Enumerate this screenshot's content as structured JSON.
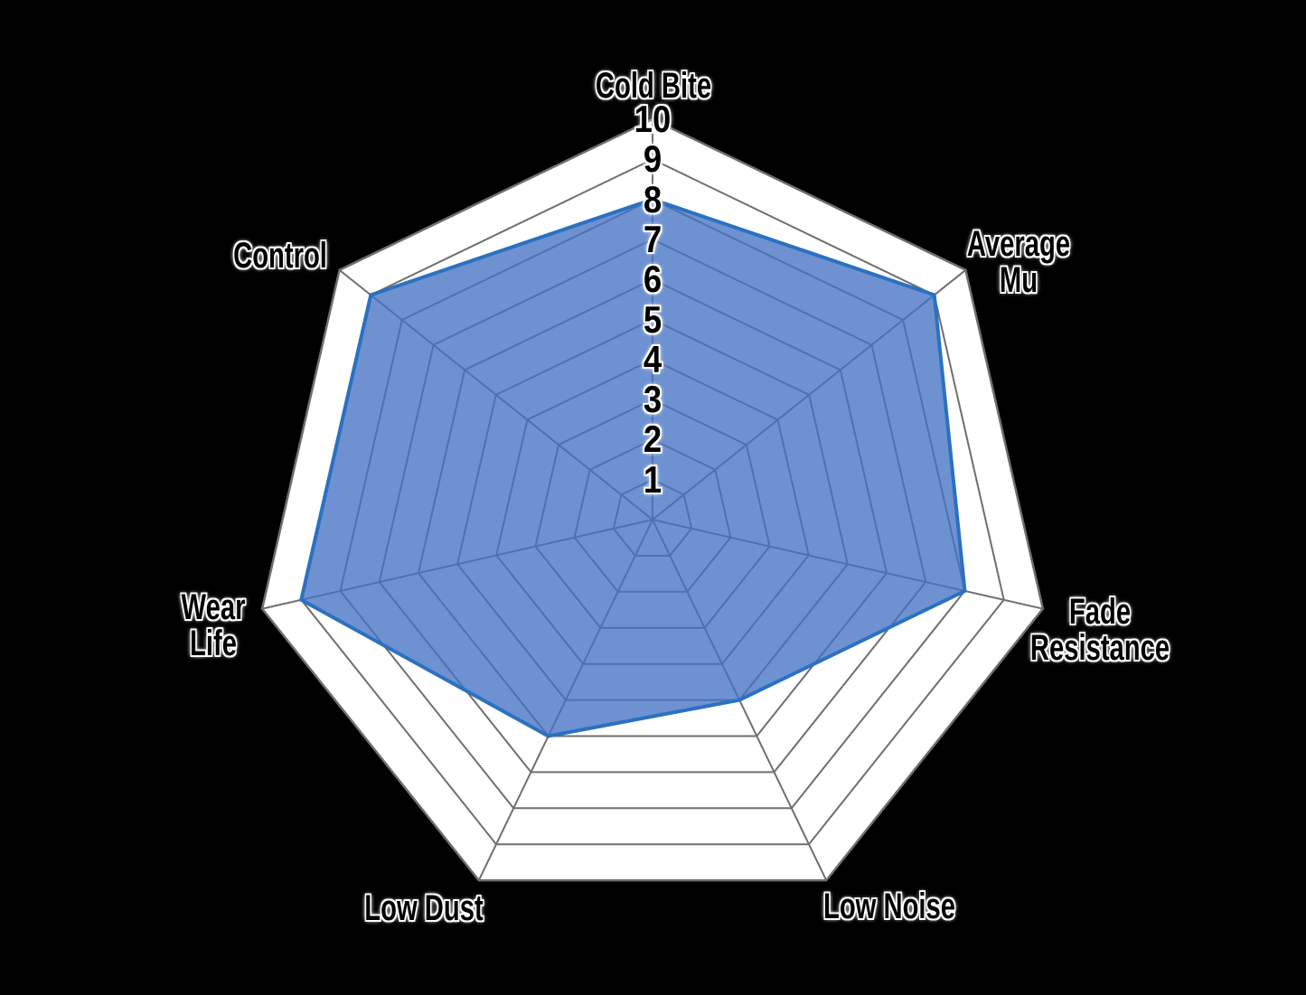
{
  "background_color": "#000000",
  "chart_data": {
    "type": "radar",
    "title": "",
    "categories": [
      "Cold Bite",
      "Average Mu",
      "Fade Resistance",
      "Low Noise",
      "Low Dust",
      "Wear Life",
      "Control"
    ],
    "values": [
      8,
      9,
      8,
      5,
      6,
      9,
      9
    ],
    "axis_label_lines": [
      [
        "Cold Bite"
      ],
      [
        "Average",
        "Mu"
      ],
      [
        "Fade",
        "Resistance"
      ],
      [
        "Low Noise"
      ],
      [
        "Low Dust"
      ],
      [
        "Wear",
        "Life"
      ],
      [
        "Control"
      ]
    ],
    "tick_labels": [
      "1",
      "2",
      "3",
      "4",
      "5",
      "6",
      "7",
      "8",
      "9",
      "10"
    ],
    "axis_min": 0,
    "axis_max": 10,
    "grid": true,
    "grid_rings": 10,
    "legend": false,
    "colors": {
      "series_fill": "#4472C4",
      "series_fill_opacity": 0.78,
      "series_stroke": "#2B71C1",
      "grid_line": "#6F6F6F",
      "ring_fill": "#FFFFFF",
      "label_text": "#000000",
      "label_halo": "#FFFFFF"
    }
  }
}
